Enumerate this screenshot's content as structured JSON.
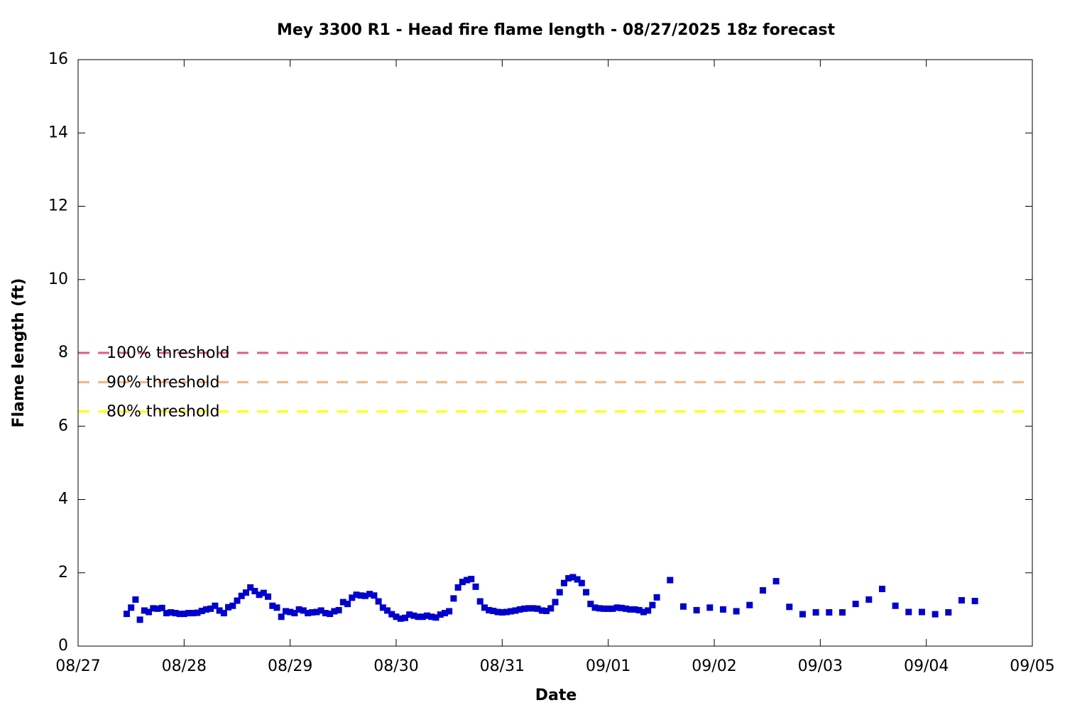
{
  "chart_data": {
    "type": "scatter",
    "title": "Mey 3300 R1 - Head fire flame length - 08/27/2025 18z forecast",
    "x_label": "Date",
    "y_label": "Flame length (ft)",
    "xlim": [
      "08/27",
      "09/05"
    ],
    "xticks": [
      "08/27",
      "08/28",
      "08/29",
      "08/30",
      "08/31",
      "09/01",
      "09/02",
      "09/03",
      "09/04",
      "09/05"
    ],
    "ylim": [
      0,
      16
    ],
    "yticks": [
      0,
      2,
      4,
      6,
      8,
      10,
      12,
      14,
      16
    ],
    "thresholds": [
      {
        "name": "100% threshold",
        "value": 8,
        "color": "#e0607a"
      },
      {
        "name": "90% threshold",
        "value": 7.2,
        "color": "#f4b183"
      },
      {
        "name": "80% threshold",
        "value": 6.4,
        "color": "#ffff00"
      }
    ],
    "series": [
      {
        "color": "#0000cc",
        "x": [
          "08/27 11:00",
          "08/27 12:00",
          "08/27 13:00",
          "08/27 14:00",
          "08/27 15:00",
          "08/27 16:00",
          "08/27 17:00",
          "08/27 18:00",
          "08/27 19:00",
          "08/27 20:00",
          "08/27 21:00",
          "08/27 22:00",
          "08/27 23:00",
          "08/28 00:00",
          "08/28 01:00",
          "08/28 02:00",
          "08/28 03:00",
          "08/28 04:00",
          "08/28 05:00",
          "08/28 06:00",
          "08/28 07:00",
          "08/28 08:00",
          "08/28 09:00",
          "08/28 10:00",
          "08/28 11:00",
          "08/28 12:00",
          "08/28 13:00",
          "08/28 14:00",
          "08/28 15:00",
          "08/28 16:00",
          "08/28 17:00",
          "08/28 18:00",
          "08/28 19:00",
          "08/28 20:00",
          "08/28 21:00",
          "08/28 22:00",
          "08/28 23:00",
          "08/29 00:00",
          "08/29 01:00",
          "08/29 02:00",
          "08/29 03:00",
          "08/29 04:00",
          "08/29 05:00",
          "08/29 06:00",
          "08/29 07:00",
          "08/29 08:00",
          "08/29 09:00",
          "08/29 10:00",
          "08/29 11:00",
          "08/29 12:00",
          "08/29 13:00",
          "08/29 14:00",
          "08/29 15:00",
          "08/29 16:00",
          "08/29 17:00",
          "08/29 18:00",
          "08/29 19:00",
          "08/29 20:00",
          "08/29 21:00",
          "08/29 22:00",
          "08/29 23:00",
          "08/30 00:00",
          "08/30 01:00",
          "08/30 02:00",
          "08/30 03:00",
          "08/30 04:00",
          "08/30 05:00",
          "08/30 06:00",
          "08/30 07:00",
          "08/30 08:00",
          "08/30 09:00",
          "08/30 10:00",
          "08/30 11:00",
          "08/30 12:00",
          "08/30 13:00",
          "08/30 14:00",
          "08/30 15:00",
          "08/30 16:00",
          "08/30 17:00",
          "08/30 18:00",
          "08/30 19:00",
          "08/30 20:00",
          "08/30 21:00",
          "08/30 22:00",
          "08/30 23:00",
          "08/31 00:00",
          "08/31 01:00",
          "08/31 02:00",
          "08/31 03:00",
          "08/31 04:00",
          "08/31 05:00",
          "08/31 06:00",
          "08/31 07:00",
          "08/31 08:00",
          "08/31 09:00",
          "08/31 10:00",
          "08/31 11:00",
          "08/31 12:00",
          "08/31 13:00",
          "08/31 14:00",
          "08/31 15:00",
          "08/31 16:00",
          "08/31 17:00",
          "08/31 18:00",
          "08/31 19:00",
          "08/31 20:00",
          "08/31 21:00",
          "08/31 22:00",
          "08/31 23:00",
          "09/01 00:00",
          "09/01 01:00",
          "09/01 02:00",
          "09/01 03:00",
          "09/01 04:00",
          "09/01 05:00",
          "09/01 06:00",
          "09/01 07:00",
          "09/01 08:00",
          "09/01 09:00",
          "09/01 10:00",
          "09/01 11:00",
          "09/01 14:00",
          "09/01 17:00",
          "09/01 20:00",
          "09/01 23:00",
          "09/02 02:00",
          "09/02 05:00",
          "09/02 08:00",
          "09/02 11:00",
          "09/02 14:00",
          "09/02 17:00",
          "09/02 20:00",
          "09/02 23:00",
          "09/03 02:00",
          "09/03 05:00",
          "09/03 08:00",
          "09/03 11:00",
          "09/03 14:00",
          "09/03 17:00",
          "09/03 20:00",
          "09/03 23:00",
          "09/04 02:00",
          "09/04 05:00",
          "09/04 08:00",
          "09/04 11:00"
        ],
        "values": [
          0.88,
          1.05,
          1.27,
          0.72,
          0.97,
          0.93,
          1.03,
          1.02,
          1.04,
          0.9,
          0.92,
          0.9,
          0.88,
          0.88,
          0.9,
          0.9,
          0.91,
          0.96,
          1.0,
          1.02,
          1.1,
          0.97,
          0.9,
          1.06,
          1.1,
          1.24,
          1.37,
          1.46,
          1.6,
          1.5,
          1.4,
          1.45,
          1.35,
          1.1,
          1.05,
          0.8,
          0.95,
          0.93,
          0.9,
          1.0,
          0.97,
          0.9,
          0.92,
          0.93,
          0.97,
          0.9,
          0.88,
          0.95,
          0.98,
          1.2,
          1.15,
          1.32,
          1.4,
          1.38,
          1.37,
          1.42,
          1.38,
          1.22,
          1.05,
          0.97,
          0.87,
          0.8,
          0.75,
          0.77,
          0.86,
          0.83,
          0.8,
          0.8,
          0.83,
          0.8,
          0.78,
          0.86,
          0.9,
          0.95,
          1.3,
          1.6,
          1.75,
          1.8,
          1.83,
          1.62,
          1.22,
          1.05,
          0.98,
          0.96,
          0.93,
          0.92,
          0.93,
          0.95,
          0.97,
          1.0,
          1.02,
          1.03,
          1.03,
          1.02,
          0.97,
          0.96,
          1.03,
          1.2,
          1.47,
          1.72,
          1.85,
          1.88,
          1.82,
          1.72,
          1.47,
          1.15,
          1.05,
          1.03,
          1.02,
          1.02,
          1.02,
          1.05,
          1.04,
          1.02,
          1.0,
          1.0,
          0.98,
          0.93,
          0.97,
          1.12,
          1.33,
          1.8,
          1.08,
          0.98,
          1.05,
          1.0,
          0.95,
          1.12,
          1.52,
          1.77,
          1.07,
          0.87,
          0.92,
          0.92,
          0.92,
          1.15,
          1.27,
          1.56,
          1.1,
          0.93,
          0.93,
          0.87,
          0.92,
          1.25,
          1.23
        ]
      }
    ]
  }
}
